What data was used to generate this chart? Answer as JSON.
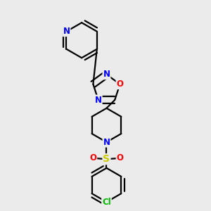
{
  "bg_color": "#ebebeb",
  "bond_color": "#000000",
  "bond_width": 1.6,
  "atom_colors": {
    "N": "#0000ff",
    "O": "#ff0000",
    "S": "#cccc00",
    "Cl": "#00bb00",
    "C": "#000000"
  },
  "font_size_atom": 8.5
}
